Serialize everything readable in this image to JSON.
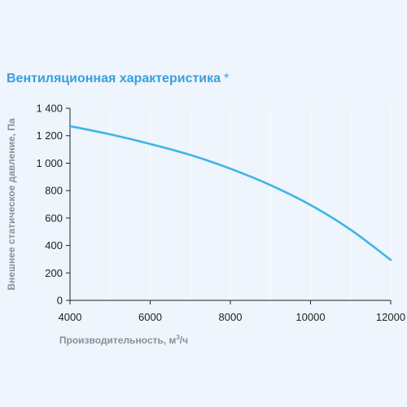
{
  "chart_data": {
    "type": "line",
    "title": "Вентиляционная характеристика",
    "title_mark": "*",
    "xlabel": "Производительность, м³/ч",
    "xlabel_main": "Производительность, м",
    "xlabel_sup": "3",
    "xlabel_tail": "/ч",
    "ylabel": "Внешнее статическое давление, Па",
    "xlim": [
      4000,
      12000
    ],
    "ylim": [
      0,
      1400
    ],
    "xticks": [
      4000,
      6000,
      8000,
      10000,
      12000
    ],
    "xtick_labels": [
      "4000",
      "6000",
      "8000",
      "10000",
      "12000"
    ],
    "yticks": [
      0,
      200,
      400,
      600,
      800,
      1000,
      1200,
      1400
    ],
    "ytick_labels": [
      "0",
      "200",
      "400",
      "600",
      "800",
      "1 000",
      "1 200",
      "1 400"
    ],
    "grid": "vertical",
    "series": [
      {
        "color": "#3fb4e6",
        "x": [
          4000,
          5000,
          6000,
          7000,
          8000,
          9000,
          10000,
          11000,
          12000
        ],
        "y": [
          1270,
          1210,
          1140,
          1060,
          960,
          840,
          695,
          515,
          295
        ]
      }
    ]
  }
}
